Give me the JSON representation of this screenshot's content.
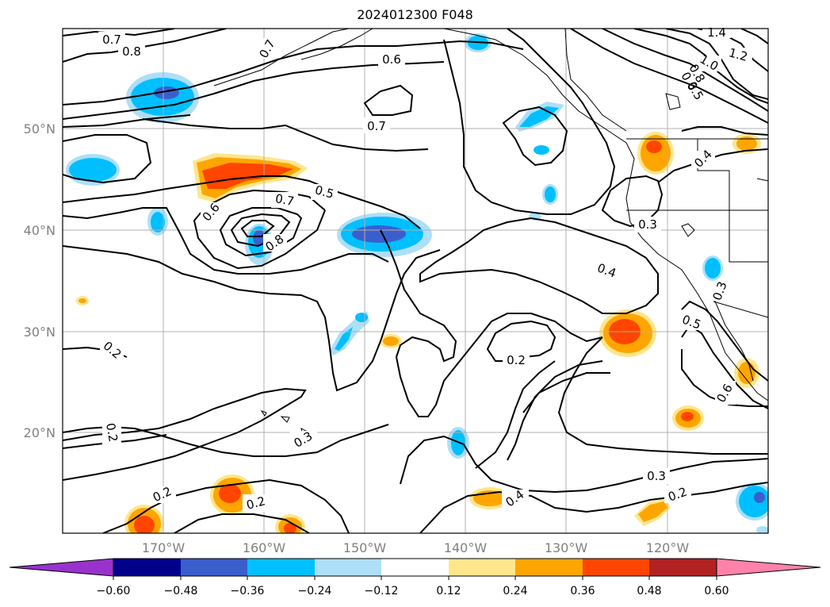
{
  "title": "2024012300 F048",
  "lat_labels": [
    "50°N",
    "40°N",
    "30°N",
    "20°N"
  ],
  "lon_labels": [
    "170°W",
    "160°W",
    "150°W",
    "140°W",
    "130°W",
    "120°W"
  ],
  "colorbar": {
    "ticks": [
      "−0.60",
      "−0.48",
      "−0.36",
      "−0.24",
      "−0.12",
      "0.12",
      "0.24",
      "0.36",
      "0.48",
      "0.60"
    ],
    "colors": [
      "#9932CC",
      "#00008B",
      "#3A5FCD",
      "#00BFFF",
      "#ADDFF8",
      "#FFFFFF",
      "#FFE68C",
      "#FFA500",
      "#FF4500",
      "#B22222",
      "#FF82AB"
    ]
  },
  "contour_labels": [
    "0.7",
    "0.8",
    "0.6",
    "0.7",
    "1.4",
    "1.2",
    "1.0",
    "0.8",
    "0.6",
    "0.5",
    "0.7",
    "0.4",
    "0.5",
    "0.7",
    "0.6",
    "0.8",
    "0.3",
    "0.4",
    "0.3",
    "0.2",
    "0.2",
    "0.5",
    "0.2",
    "0.6",
    "0.3",
    "0.2",
    "0.2",
    "0.2",
    "0.4",
    "0.3"
  ]
}
